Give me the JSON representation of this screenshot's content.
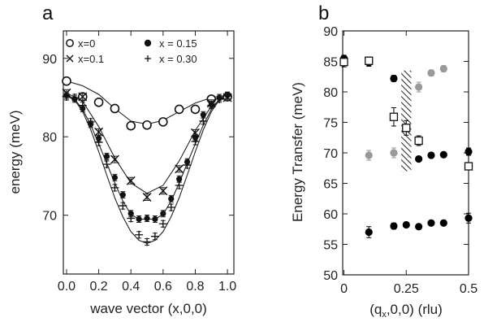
{
  "chart_data": [
    {
      "panel_label": "a",
      "type": "scatter",
      "xlabel": "wave vector (x,0,0)",
      "ylabel": "energy (meV)",
      "xlim": [
        -0.02,
        1.04
      ],
      "ylim": [
        62.5,
        93.5
      ],
      "xticks": [
        "0.0",
        "0.2",
        "0.4",
        "0.6",
        "0.8",
        "1.0"
      ],
      "xtick_values": [
        0,
        0.2,
        0.4,
        0.6,
        0.8,
        1.0
      ],
      "yticks": [
        "70",
        "80",
        "90"
      ],
      "ytick_values": [
        70,
        80,
        90
      ],
      "legend_position": "top",
      "series": [
        {
          "name": "x=0",
          "marker": "open-circle",
          "x": [
            0.0,
            0.1,
            0.2,
            0.3,
            0.4,
            0.5,
            0.6,
            0.7,
            0.8,
            0.9,
            1.0
          ],
          "y": [
            87.1,
            85.1,
            84.4,
            83.6,
            81.4,
            81.5,
            81.9,
            83.5,
            83.5,
            84.8,
            85.1
          ],
          "fit": [
            87.1,
            86.5,
            85.4,
            83.6,
            82.0,
            81.6,
            82.1,
            83.2,
            84.3,
            85.0,
            85.3
          ]
        },
        {
          "name": "x=0.1",
          "marker": "x",
          "x": [
            0.0,
            0.1,
            0.2,
            0.3,
            0.4,
            0.5,
            0.6,
            0.7,
            0.8,
            0.9,
            1.0
          ],
          "y": [
            85.6,
            85.1,
            80.6,
            77.1,
            74.4,
            72.3,
            73.1,
            75.9,
            80.5,
            84.3,
            85.0
          ],
          "fit": [
            85.6,
            84.5,
            81.3,
            77.3,
            74.1,
            72.8,
            73.8,
            76.9,
            80.8,
            83.9,
            85.3
          ]
        },
        {
          "name": "x = 0.15",
          "marker": "filled-circle",
          "x": [
            0.0,
            0.05,
            0.1,
            0.15,
            0.2,
            0.25,
            0.3,
            0.35,
            0.4,
            0.45,
            0.5,
            0.55,
            0.6,
            0.65,
            0.7,
            0.75,
            0.8,
            0.85,
            0.9,
            0.95,
            1.0
          ],
          "y": [
            85.3,
            84.8,
            83.6,
            81.6,
            79.8,
            77.5,
            74.8,
            72.6,
            70.2,
            69.5,
            69.6,
            69.5,
            70.2,
            72.1,
            74.6,
            76.8,
            79.9,
            82.8,
            84.1,
            85.0,
            85.3
          ],
          "fit": [
            85.3,
            84.8,
            83.5,
            81.5,
            79.1,
            76.6,
            74.1,
            71.8,
            70.1,
            69.5,
            69.5,
            69.5,
            70.1,
            71.8,
            74.1,
            76.6,
            79.1,
            81.5,
            83.5,
            84.8,
            85.3
          ]
        },
        {
          "name": "x = 0.30",
          "marker": "plus",
          "x": [
            0.0,
            0.05,
            0.1,
            0.15,
            0.2,
            0.25,
            0.3,
            0.35,
            0.4,
            0.45,
            0.5,
            0.55,
            0.6,
            0.65,
            0.7,
            0.75,
            0.8,
            0.85,
            0.9,
            0.95,
            1.0
          ],
          "y": [
            85.1,
            85.0,
            84.0,
            81.9,
            79.3,
            76.5,
            73.5,
            71.2,
            69.6,
            67.5,
            66.6,
            67.3,
            68.9,
            71.0,
            73.8,
            76.4,
            79.4,
            82.0,
            84.0,
            84.8,
            85.2
          ],
          "fit": [
            85.2,
            84.7,
            83.2,
            80.9,
            78.1,
            75.1,
            72.2,
            69.8,
            67.9,
            66.8,
            66.4,
            66.8,
            67.9,
            69.8,
            72.2,
            75.1,
            78.1,
            80.9,
            83.2,
            84.7,
            85.2
          ]
        }
      ]
    },
    {
      "panel_label": "b",
      "type": "scatter",
      "xlabel": "(q",
      "xlabel_sub": "x",
      "xlabel_rest": ",0,0)  (rlu)",
      "ylabel": "Energy Transfer (meV)",
      "xlim": [
        -0.005,
        0.5
      ],
      "ylim": [
        50,
        90
      ],
      "xticks": [
        "0",
        "0.25",
        "0.5"
      ],
      "xtick_values": [
        0,
        0.25,
        0.5
      ],
      "yticks": [
        "50",
        "55",
        "60",
        "65",
        "70",
        "75",
        "80",
        "85",
        "90"
      ],
      "ytick_values": [
        50,
        55,
        60,
        65,
        70,
        75,
        80,
        85,
        90
      ],
      "hatched_region": {
        "x": [
          0.23,
          0.27
        ],
        "y": [
          67,
          83.5
        ]
      },
      "series": [
        {
          "marker": "filled-circle",
          "color": "#000000",
          "x": [
            0.1,
            0.2,
            0.25,
            0.3,
            0.35,
            0.4,
            0.5
          ],
          "y": [
            57.0,
            58.0,
            58.2,
            57.9,
            58.5,
            58.5,
            59.3
          ],
          "yerr": [
            0.9,
            0.5,
            0.4,
            0.4,
            0.4,
            0.4,
            0.8
          ]
        },
        {
          "marker": "filled-circle",
          "color": "#000000",
          "x": [
            0.3,
            0.35,
            0.4,
            0.5
          ],
          "y": [
            69.0,
            69.6,
            69.7,
            70.2
          ],
          "yerr": [
            0.4,
            0.4,
            0.4,
            0.6
          ]
        },
        {
          "marker": "filled-circle",
          "color": "#000000",
          "x": [
            0.0,
            0.1,
            0.2
          ],
          "y": [
            85.5,
            84.8,
            82.2
          ],
          "yerr": [
            0.5,
            0.6,
            0.5
          ]
        },
        {
          "marker": "filled-circle",
          "color": "#999999",
          "x": [
            0.1,
            0.2
          ],
          "y": [
            69.6,
            70.0
          ],
          "yerr": [
            0.8,
            0.8
          ]
        },
        {
          "marker": "filled-circle",
          "color": "#999999",
          "x": [
            0.3,
            0.35,
            0.4
          ],
          "y": [
            80.8,
            83.1,
            83.8
          ],
          "yerr": [
            0.8,
            0.5,
            0.5
          ]
        },
        {
          "marker": "open-square",
          "color": "#000000",
          "x": [
            0.0,
            0.1,
            0.2,
            0.25,
            0.3,
            0.5
          ],
          "y": [
            84.9,
            85.1,
            75.9,
            74.1,
            72.0,
            67.8
          ],
          "yerr": [
            0.8,
            0.6,
            1.5,
            1.2,
            0.8,
            0.6
          ]
        }
      ]
    }
  ]
}
